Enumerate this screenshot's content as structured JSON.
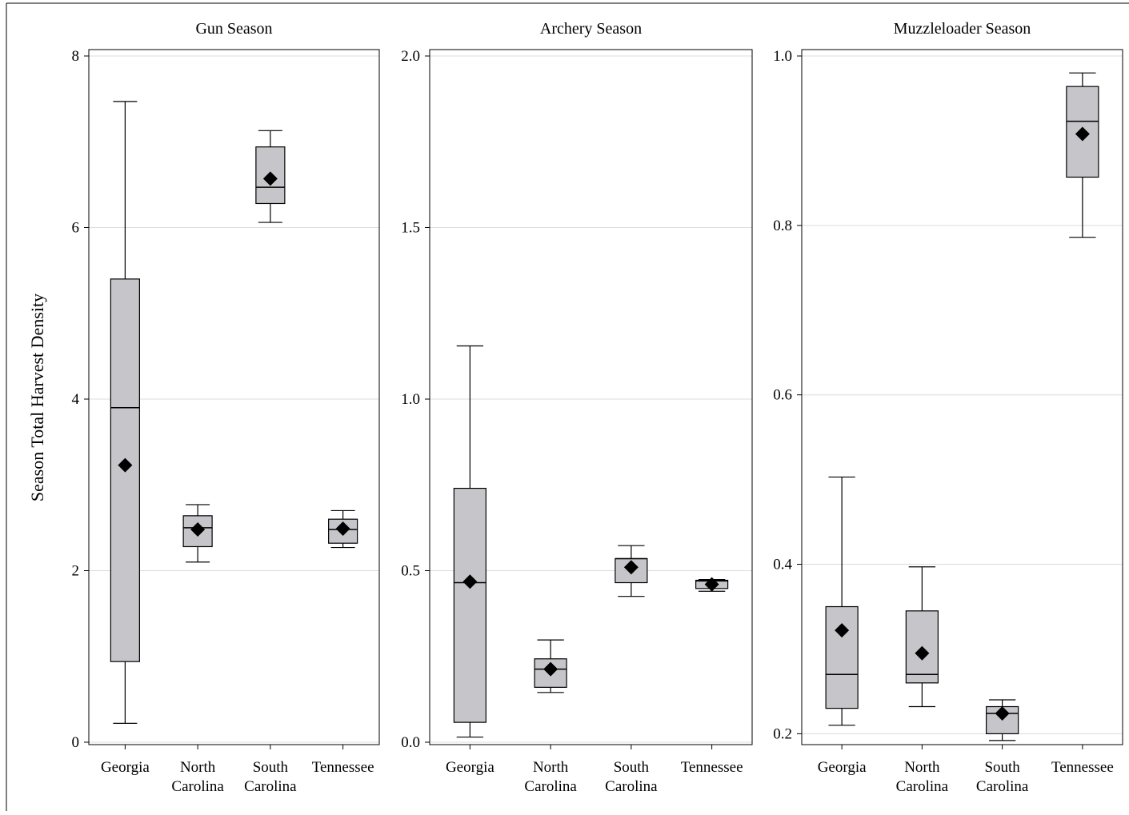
{
  "chart_data": {
    "type": "box",
    "ylabel": "Season Total Harvest Density",
    "colors": {
      "box_fill": "#c6c5ca",
      "grid": "#dcdcdc",
      "frame": "#000000",
      "mean_marker": "#000000"
    },
    "mean_marker_shape": "diamond",
    "grid": true,
    "categories": [
      [
        "Georgia"
      ],
      [
        "North",
        "Carolina"
      ],
      [
        "South",
        "Carolina"
      ],
      [
        "Tennessee"
      ]
    ],
    "panels": [
      {
        "title": "Gun Season",
        "ylim": [
          0,
          8
        ],
        "yticks": [
          "0",
          "2",
          "4",
          "6",
          "8"
        ],
        "ytick_values": [
          0,
          2,
          4,
          6,
          8
        ],
        "boxes": [
          {
            "category": "Georgia",
            "min": 0.22,
            "q1": 0.94,
            "median": 3.9,
            "q3": 5.4,
            "max": 7.47,
            "mean": 3.23
          },
          {
            "category": "North Carolina",
            "min": 2.1,
            "q1": 2.28,
            "median": 2.5,
            "q3": 2.64,
            "max": 2.77,
            "mean": 2.48
          },
          {
            "category": "South Carolina",
            "min": 6.06,
            "q1": 6.28,
            "median": 6.47,
            "q3": 6.94,
            "max": 7.13,
            "mean": 6.57
          },
          {
            "category": "Tennessee",
            "min": 2.27,
            "q1": 2.32,
            "median": 2.48,
            "q3": 2.6,
            "max": 2.7,
            "mean": 2.49
          }
        ]
      },
      {
        "title": "Archery Season",
        "ylim": [
          0,
          2
        ],
        "yticks": [
          "0.0",
          "0.5",
          "1.0",
          "1.5",
          "2.0"
        ],
        "ytick_values": [
          0,
          0.5,
          1.0,
          1.5,
          2.0
        ],
        "boxes": [
          {
            "category": "Georgia",
            "min": 0.015,
            "q1": 0.058,
            "median": 0.465,
            "q3": 0.74,
            "max": 1.155,
            "mean": 0.468
          },
          {
            "category": "North Carolina",
            "min": 0.145,
            "q1": 0.16,
            "median": 0.213,
            "q3": 0.243,
            "max": 0.298,
            "mean": 0.213
          },
          {
            "category": "South Carolina",
            "min": 0.425,
            "q1": 0.465,
            "median": 0.535,
            "q3": 0.535,
            "max": 0.573,
            "mean": 0.51
          },
          {
            "category": "Tennessee",
            "min": 0.44,
            "q1": 0.448,
            "median": 0.47,
            "q3": 0.472,
            "max": 0.474,
            "mean": 0.46
          }
        ]
      },
      {
        "title": "Muzzleloader Season",
        "ylim": [
          0.19,
          1.0
        ],
        "yticks": [
          "0.2",
          "0.4",
          "0.6",
          "0.8",
          "1.0"
        ],
        "ytick_values": [
          0.2,
          0.4,
          0.6,
          0.8,
          1.0
        ],
        "boxes": [
          {
            "category": "Georgia",
            "min": 0.21,
            "q1": 0.23,
            "median": 0.27,
            "q3": 0.35,
            "max": 0.503,
            "mean": 0.322
          },
          {
            "category": "North Carolina",
            "min": 0.232,
            "q1": 0.26,
            "median": 0.27,
            "q3": 0.345,
            "max": 0.397,
            "mean": 0.295
          },
          {
            "category": "South Carolina",
            "min": 0.192,
            "q1": 0.2,
            "median": 0.224,
            "q3": 0.232,
            "max": 0.24,
            "mean": 0.224
          },
          {
            "category": "Tennessee",
            "min": 0.786,
            "q1": 0.857,
            "median": 0.923,
            "q3": 0.964,
            "max": 0.98,
            "mean": 0.908
          }
        ]
      }
    ]
  }
}
